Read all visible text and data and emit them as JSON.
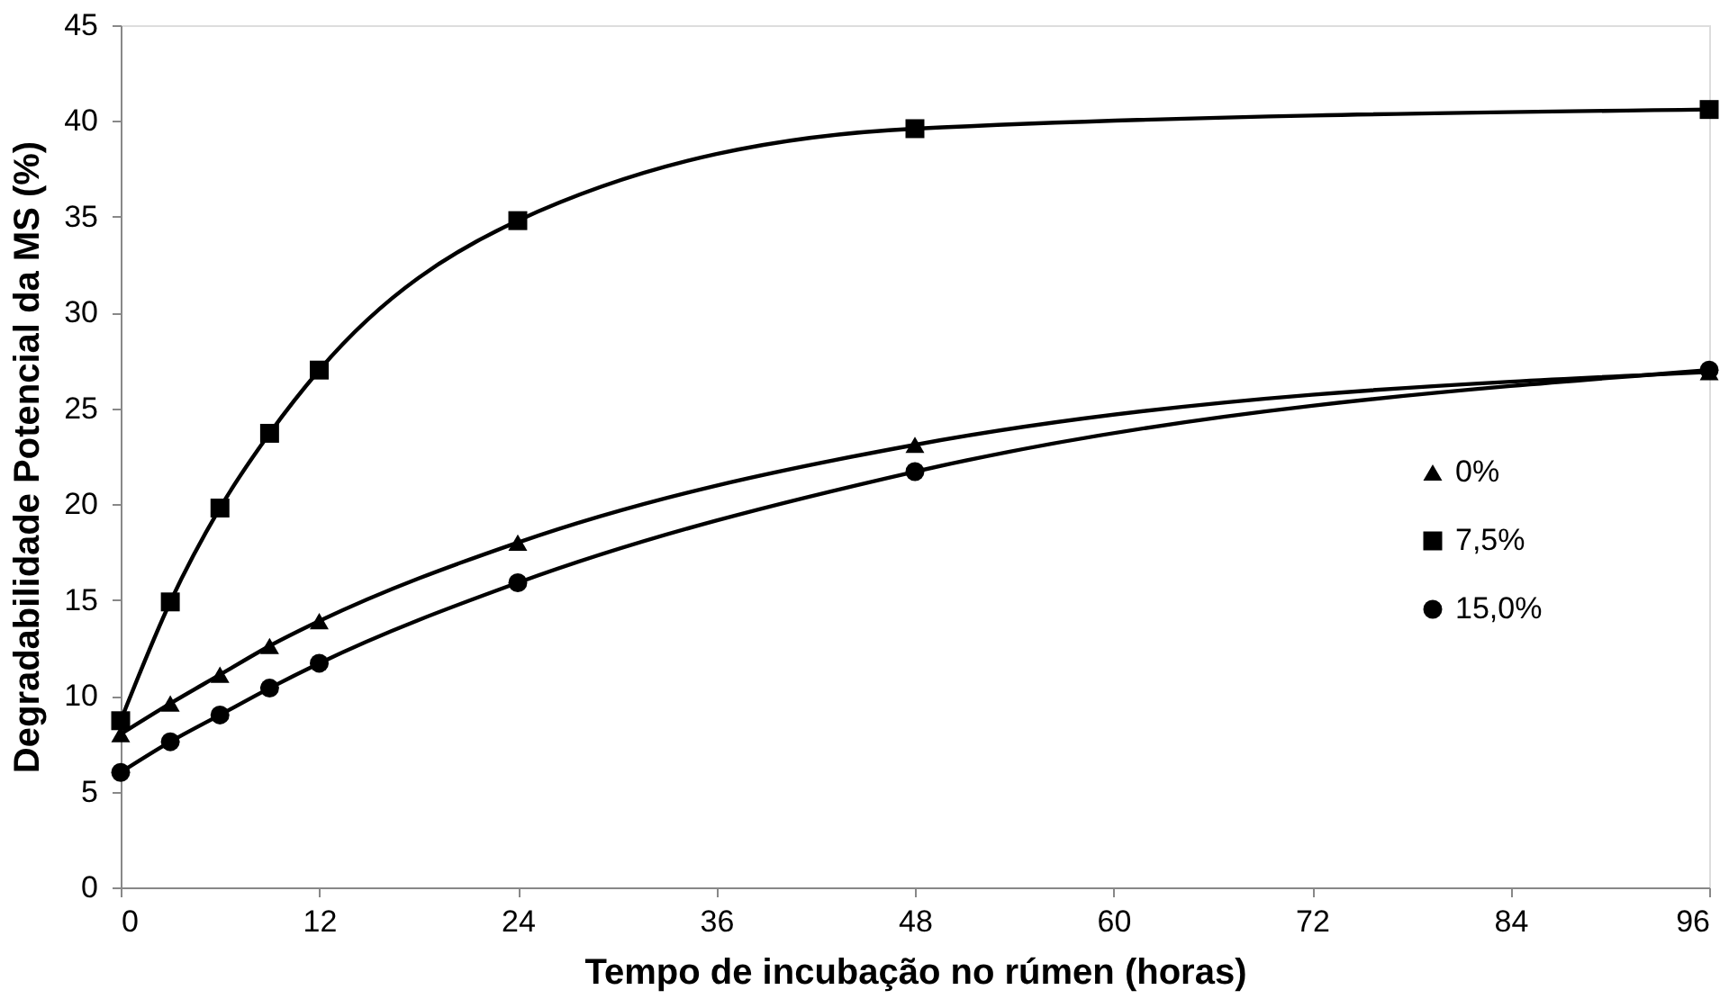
{
  "chart_data": {
    "type": "line",
    "xlabel": "Tempo de incubação no rúmen (horas)",
    "ylabel": "Degradabilidade Potencial da MS (%)",
    "x": [
      0,
      3,
      6,
      9,
      12,
      24,
      48,
      96
    ],
    "series": [
      {
        "name": "0%",
        "color": "#000000",
        "marker": "triangle",
        "values": [
          8.0,
          9.6,
          11.1,
          12.6,
          13.9,
          18.0,
          23.1,
          26.9
        ]
      },
      {
        "name": "7,5%",
        "color": "#000000",
        "marker": "square",
        "values": [
          8.7,
          14.9,
          19.8,
          23.7,
          27.0,
          34.8,
          39.6,
          40.6
        ]
      },
      {
        "name": "15,0%",
        "color": "#000000",
        "marker": "circle",
        "values": [
          6.0,
          7.6,
          9.0,
          10.4,
          11.7,
          15.9,
          21.7,
          27.0
        ]
      }
    ],
    "xlim": [
      0,
      96
    ],
    "xticks": [
      0,
      12,
      24,
      36,
      48,
      60,
      72,
      84,
      96
    ],
    "ylim": [
      0,
      45
    ],
    "yticks": [
      0,
      5,
      10,
      15,
      20,
      25,
      30,
      35,
      40,
      45
    ],
    "grid": false,
    "legend": "right"
  }
}
